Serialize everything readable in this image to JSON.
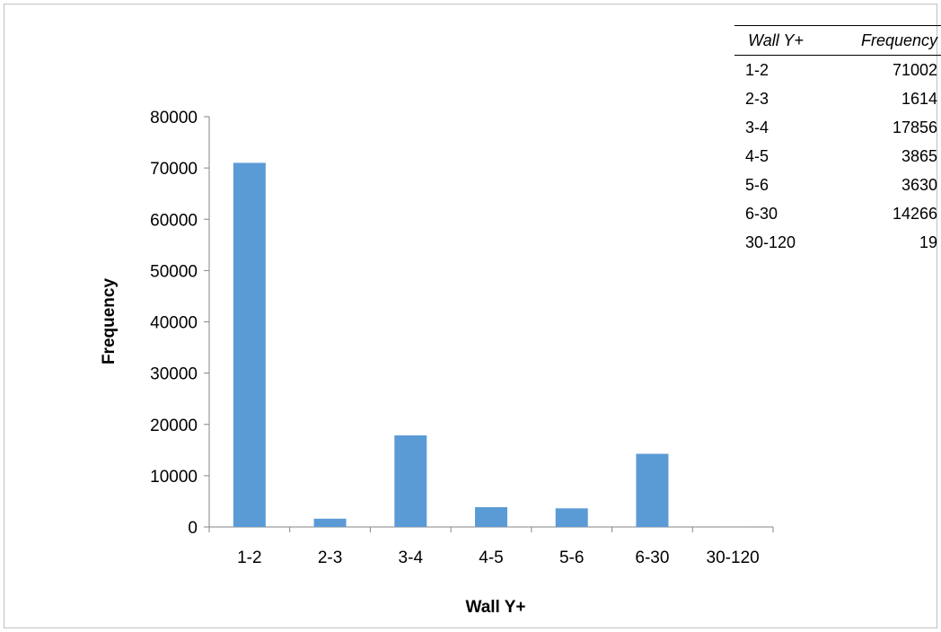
{
  "chart_data": {
    "type": "bar",
    "categories": [
      "1-2",
      "2-3",
      "3-4",
      "4-5",
      "5-6",
      "6-30",
      "30-120"
    ],
    "values": [
      71002,
      1614,
      17856,
      3865,
      3630,
      14266,
      19
    ],
    "title": "",
    "xlabel": "Wall Y+",
    "ylabel": "Frequency",
    "ylim": [
      0,
      80000
    ],
    "yticks": [
      0,
      10000,
      20000,
      30000,
      40000,
      50000,
      60000,
      70000,
      80000
    ],
    "grid": false,
    "bar_color": "#5b9bd5"
  },
  "table": {
    "headers": [
      "Wall Y+",
      "Frequency"
    ],
    "rows": [
      [
        "1-2",
        "71002"
      ],
      [
        "2-3",
        "1614"
      ],
      [
        "3-4",
        "17856"
      ],
      [
        "4-5",
        "3865"
      ],
      [
        "5-6",
        "3630"
      ],
      [
        "6-30",
        "14266"
      ],
      [
        "30-120",
        "19"
      ]
    ]
  }
}
